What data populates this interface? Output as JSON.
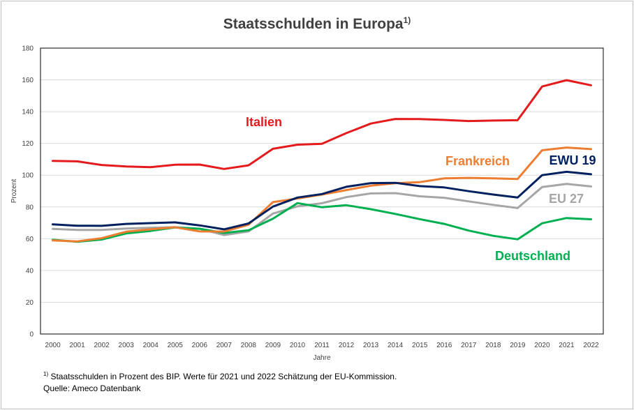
{
  "chart_data": {
    "type": "line",
    "title": "Staatsschulden in Europa",
    "title_sup": "1)",
    "xlabel": "Jahre",
    "ylabel": "Prozent",
    "ylim": [
      0,
      180
    ],
    "yticks": [
      0,
      20,
      40,
      60,
      80,
      100,
      120,
      140,
      160,
      180
    ],
    "grid": true,
    "categories": [
      "2000",
      "2001",
      "2002",
      "2003",
      "2004",
      "2005",
      "2006",
      "2007",
      "2008",
      "2009",
      "2010",
      "2011",
      "2012",
      "2013",
      "2014",
      "2015",
      "2016",
      "2017",
      "2018",
      "2019",
      "2020",
      "2021",
      "2022"
    ],
    "series": [
      {
        "name": "Italien",
        "color": "#e41a1c",
        "values": [
          109.0,
          108.7,
          106.4,
          105.5,
          105.0,
          106.6,
          106.7,
          103.9,
          106.2,
          116.6,
          119.2,
          119.7,
          126.5,
          132.5,
          135.4,
          135.3,
          134.8,
          134.1,
          134.4,
          134.6,
          155.8,
          159.8,
          156.6
        ]
      },
      {
        "name": "Frankreich",
        "color": "#ed7d31",
        "values": [
          58.9,
          58.3,
          60.3,
          64.4,
          65.9,
          67.2,
          64.6,
          64.5,
          68.8,
          83.0,
          85.3,
          87.8,
          90.6,
          93.4,
          94.9,
          95.6,
          98.0,
          98.3,
          98.0,
          97.6,
          115.7,
          117.4,
          116.4
        ]
      },
      {
        "name": "EWU 19",
        "color": "#002060",
        "values": [
          69.0,
          68.2,
          68.1,
          69.3,
          69.8,
          70.3,
          68.4,
          65.9,
          69.6,
          80.2,
          85.9,
          88.1,
          92.7,
          95.0,
          95.2,
          93.1,
          92.3,
          89.9,
          87.8,
          85.9,
          100.0,
          102.1,
          100.6
        ]
      },
      {
        "name": "EU 27",
        "color": "#a6a6a6",
        "values": [
          66.2,
          65.5,
          65.5,
          66.4,
          66.9,
          67.2,
          66.2,
          62.3,
          64.6,
          75.8,
          80.4,
          82.3,
          86.2,
          88.5,
          88.7,
          86.7,
          85.8,
          83.5,
          81.3,
          79.3,
          92.5,
          94.5,
          92.9
        ]
      },
      {
        "name": "Deutschland",
        "color": "#00b050",
        "values": [
          59.3,
          58.1,
          59.5,
          63.3,
          64.9,
          67.1,
          66.3,
          63.6,
          65.3,
          72.6,
          82.4,
          79.8,
          81.1,
          78.6,
          75.6,
          72.3,
          69.3,
          65.1,
          61.8,
          59.6,
          69.7,
          73.0,
          72.2
        ]
      }
    ]
  },
  "footnote": {
    "sup": "1)",
    "line1": " Staatsschulden in Prozent des BIP. Werte für 2021 und 2022 Schätzung der EU-Kommission.",
    "line2": "Quelle: Ameco Datenbank"
  }
}
